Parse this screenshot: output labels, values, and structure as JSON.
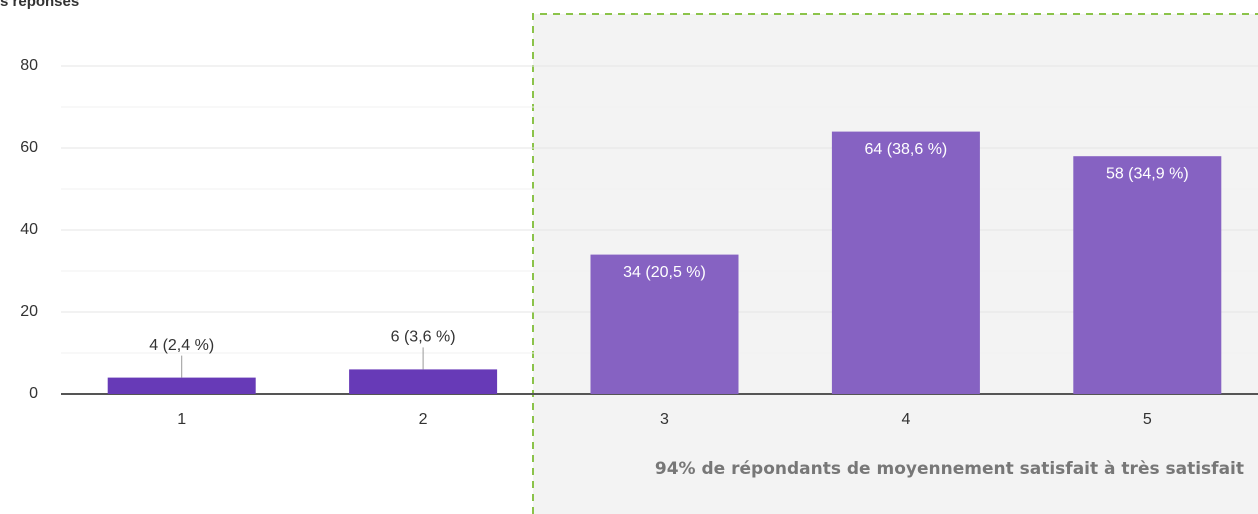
{
  "chart_data": {
    "type": "bar",
    "y_label": "s réponses",
    "categories": [
      "1",
      "2",
      "3",
      "4",
      "5"
    ],
    "values": [
      4,
      6,
      34,
      64,
      58
    ],
    "value_labels": [
      "4 (2,4 %)",
      "6 (3,6 %)",
      "34 (20,5 %)",
      "64 (38,6 %)",
      "58 (34,9 %)"
    ],
    "colors": [
      "#673ab7",
      "#673ab7",
      "#8662c2",
      "#8662c2",
      "#8662c2"
    ],
    "ylim": [
      0,
      80
    ],
    "yticks": [
      0,
      20,
      40,
      60,
      80
    ],
    "minor_yticks": [
      10,
      30,
      50,
      70
    ],
    "grid": true,
    "annotation": "94% de répondants de moyennement satisfait à très satisfait"
  }
}
